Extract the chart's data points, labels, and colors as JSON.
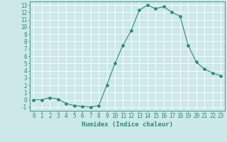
{
  "x": [
    0,
    1,
    2,
    3,
    4,
    5,
    6,
    7,
    8,
    9,
    10,
    11,
    12,
    13,
    14,
    15,
    16,
    17,
    18,
    19,
    20,
    21,
    22,
    23
  ],
  "y": [
    0,
    0,
    0.3,
    0.1,
    -0.5,
    -0.8,
    -0.9,
    -1.0,
    -0.8,
    2.0,
    5.0,
    7.5,
    9.5,
    12.3,
    13.0,
    12.5,
    12.8,
    12.0,
    11.5,
    7.5,
    5.2,
    4.2,
    3.7,
    3.3
  ],
  "xlabel": "Humidex (Indice chaleur)",
  "xlim": [
    -0.5,
    23.5
  ],
  "ylim": [
    -1.5,
    13.5
  ],
  "xticks": [
    0,
    1,
    2,
    3,
    4,
    5,
    6,
    7,
    8,
    9,
    10,
    11,
    12,
    13,
    14,
    15,
    16,
    17,
    18,
    19,
    20,
    21,
    22,
    23
  ],
  "yticks": [
    -1,
    0,
    1,
    2,
    3,
    4,
    5,
    6,
    7,
    8,
    9,
    10,
    11,
    12,
    13
  ],
  "line_color": "#2e8b78",
  "bg_color": "#cce8e8",
  "grid_color": "#ffffff",
  "tick_fontsize": 5.5,
  "xlabel_fontsize": 6.5
}
